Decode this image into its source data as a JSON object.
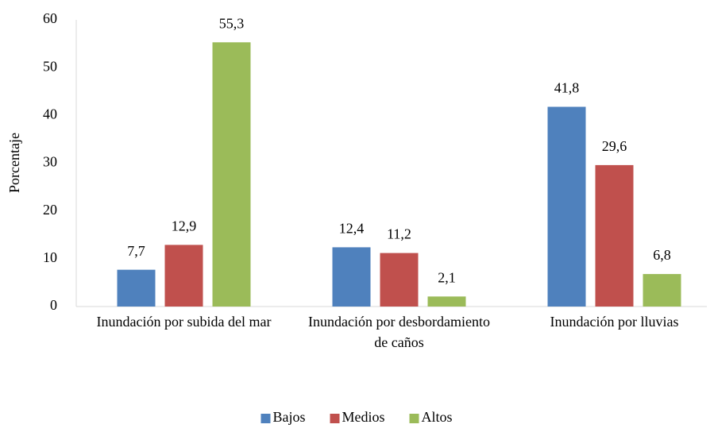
{
  "chart_data": {
    "type": "bar",
    "y_axis_label": "Porcentaje",
    "categories": [
      "Inundación por subida del mar",
      "Inundación por desbordamiento de caños",
      "Inundación por lluvias"
    ],
    "series": [
      {
        "name": "Bajos",
        "color": "#4f81bd",
        "values": [
          7.7,
          12.4,
          41.8
        ],
        "value_labels": [
          "7,7",
          "12,4",
          "41,8"
        ]
      },
      {
        "name": "Medios",
        "color": "#c0504d",
        "values": [
          12.9,
          11.2,
          29.6
        ],
        "value_labels": [
          "12,9",
          "11,2",
          "29,6"
        ]
      },
      {
        "name": "Altos",
        "color": "#9bbb59",
        "values": [
          55.3,
          2.1,
          6.8
        ],
        "value_labels": [
          "55,3",
          "2,1",
          "6,8"
        ]
      }
    ],
    "ylim": [
      0,
      60
    ],
    "yticks": [
      0,
      10,
      20,
      30,
      40,
      50,
      60
    ],
    "grid": false,
    "legend": "bottom"
  }
}
